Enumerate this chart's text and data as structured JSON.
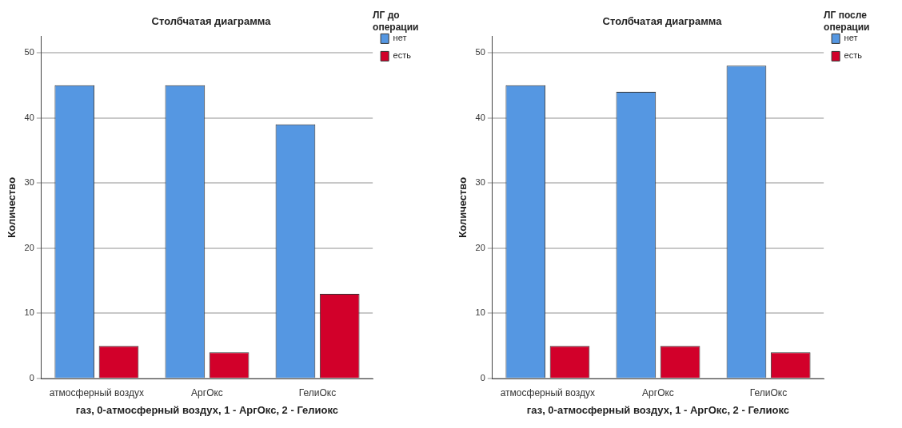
{
  "chart_data": [
    {
      "type": "bar",
      "title": "Столбчатая диаграмма",
      "xlabel": "газ, 0-атмосферный воздух, 1 - АргОкс, 2 - Гелиокс",
      "ylabel": "Количество",
      "legend_title": "ЛГ до операции",
      "legend": "top right",
      "grid": "y",
      "categories": [
        "атмосферный воздух",
        "АргОкс",
        "ГелиОкс"
      ],
      "ylim": [
        0,
        52.5
      ],
      "yticks": [
        0,
        10,
        20,
        30,
        40,
        50
      ],
      "series": [
        {
          "name": "нет",
          "color": "#5597e2",
          "values": [
            45,
            45,
            39
          ]
        },
        {
          "name": "есть",
          "color": "#d2002a",
          "values": [
            5,
            4,
            13
          ]
        }
      ]
    },
    {
      "type": "bar",
      "title": "Столбчатая диаграмма",
      "xlabel": "газ, 0-атмосферный воздух, 1 - АргОкс, 2 - Гелиокс",
      "ylabel": "Количество",
      "legend_title": "ЛГ после операции",
      "legend": "top right",
      "grid": "y",
      "categories": [
        "атмосферный воздух",
        "АргОкс",
        "ГелиОкс"
      ],
      "ylim": [
        0,
        52.5
      ],
      "yticks": [
        0,
        10,
        20,
        30,
        40,
        50
      ],
      "series": [
        {
          "name": "нет",
          "color": "#5597e2",
          "values": [
            45,
            44,
            48
          ]
        },
        {
          "name": "есть",
          "color": "#d2002a",
          "values": [
            5,
            5,
            4
          ]
        }
      ]
    }
  ]
}
